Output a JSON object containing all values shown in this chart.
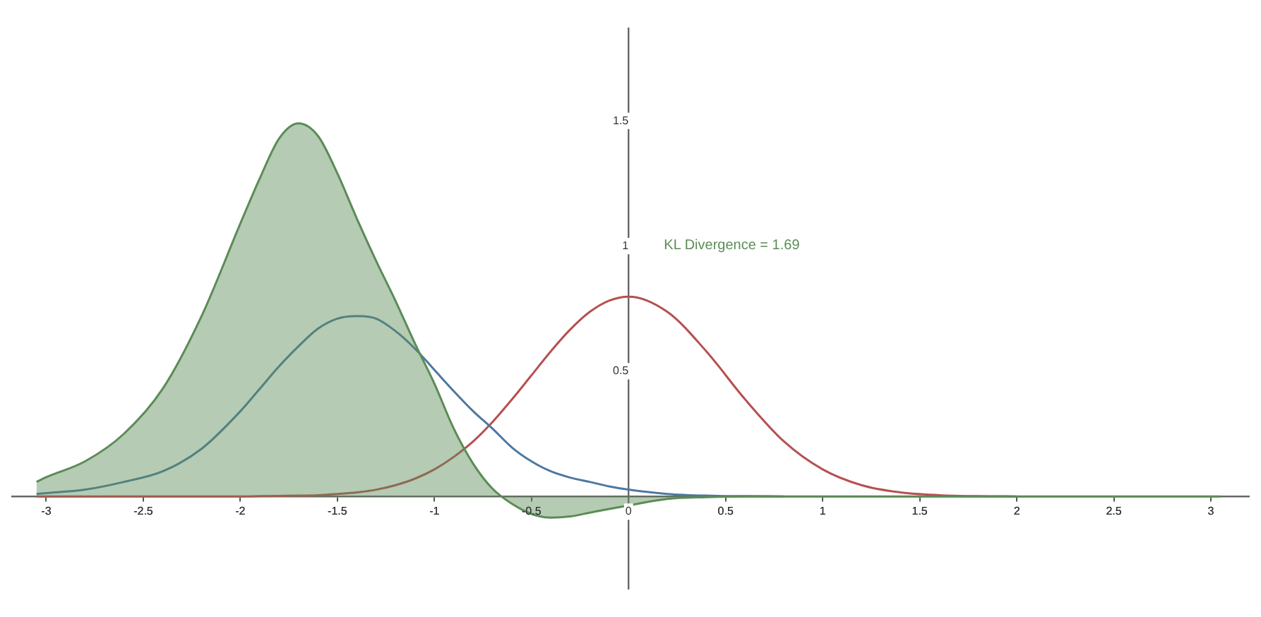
{
  "chart_data": {
    "type": "line",
    "x": [
      -3.05,
      -3,
      -2.8,
      -2.6,
      -2.4,
      -2.2,
      -2,
      -1.9,
      -1.8,
      -1.7,
      -1.6,
      -1.5,
      -1.4,
      -1.3,
      -1.2,
      -1.1,
      -1,
      -0.9,
      -0.8,
      -0.7,
      -0.6,
      -0.5,
      -0.4,
      -0.3,
      -0.2,
      -0.1,
      0,
      0.2,
      0.4,
      0.6,
      0.8,
      1,
      1.2,
      1.4,
      1.6,
      1.8,
      2,
      2.5,
      3.05
    ],
    "series": [
      {
        "type": "area",
        "color": "#5b8c56",
        "values": [
          0.058,
          0.077,
          0.14,
          0.25,
          0.43,
          0.72,
          1.09,
          1.27,
          1.43,
          1.49,
          1.44,
          1.29,
          1.11,
          0.94,
          0.78,
          0.61,
          0.45,
          0.27,
          0.13,
          0.03,
          -0.03,
          -0.07,
          -0.085,
          -0.08,
          -0.065,
          -0.05,
          -0.036,
          -0.01,
          -0.003,
          0,
          0,
          0,
          0,
          0,
          0,
          0,
          0,
          0,
          0
        ]
      },
      {
        "color": "#4d78a0",
        "values": [
          0.01,
          0.013,
          0.027,
          0.058,
          0.1,
          0.19,
          0.34,
          0.43,
          0.52,
          0.6,
          0.67,
          0.71,
          0.72,
          0.71,
          0.66,
          0.59,
          0.505,
          0.42,
          0.34,
          0.27,
          0.195,
          0.14,
          0.1,
          0.075,
          0.058,
          0.04,
          0.027,
          0.01,
          0.003,
          0.001,
          0,
          null,
          null,
          null,
          null,
          null,
          null,
          null,
          null
        ]
      },
      {
        "color": "#b5514f",
        "values": [
          0,
          0,
          0,
          0,
          0,
          0,
          0,
          0.001,
          0.002,
          0.003,
          0.005,
          0.01,
          0.016,
          0.027,
          0.045,
          0.071,
          0.108,
          0.158,
          0.22,
          0.298,
          0.388,
          0.484,
          0.58,
          0.667,
          0.737,
          0.782,
          0.798,
          0.737,
          0.58,
          0.388,
          0.22,
          0.108,
          0.045,
          0.016,
          0.005,
          0.001,
          0,
          null,
          null
        ]
      }
    ],
    "xlim": [
      -3.18,
      3.2
    ],
    "ylim": [
      -0.37,
      1.87
    ],
    "xticks": [
      -3,
      -2.5,
      -2,
      -1.5,
      -1,
      -0.5,
      0,
      0.5,
      1,
      1.5,
      2,
      2.5,
      3
    ],
    "yticks": [
      0.5,
      1,
      1.5
    ],
    "annotations": [
      "KL Divergence = 1.69"
    ],
    "grid": false,
    "legend": false,
    "marker": "none",
    "line_style": "solid"
  }
}
